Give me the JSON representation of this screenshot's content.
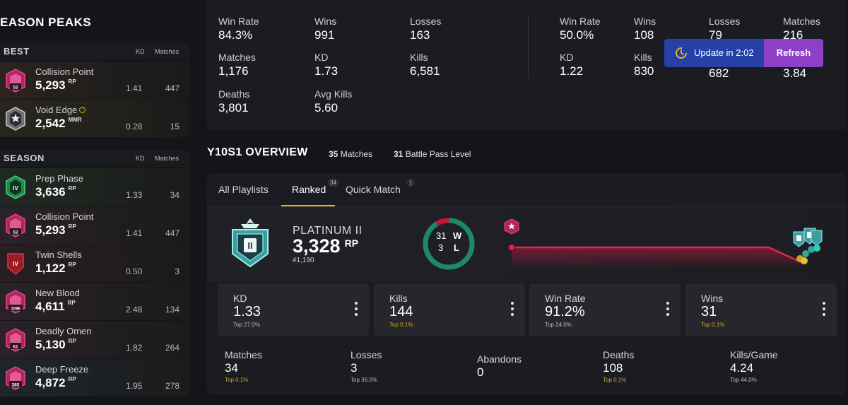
{
  "sidebar": {
    "title": "EASON PEAKS",
    "best": {
      "label": "BEST",
      "kd_header": "KD",
      "matches_header": "Matches",
      "items": [
        {
          "name": "Collision Point",
          "value": "5,293",
          "unit": "RP",
          "kd": "1.41",
          "matches": "447",
          "badge": "52"
        },
        {
          "name": "Void Edge",
          "value": "2,542",
          "unit": "MMR",
          "kd": "0.28",
          "matches": "15",
          "badge": ""
        }
      ]
    },
    "season": {
      "label": "SEASON",
      "kd_header": "KD",
      "matches_header": "Matches",
      "items": [
        {
          "name": "Prep Phase",
          "value": "3,636",
          "unit": "RP",
          "kd": "1.33",
          "matches": "34",
          "badge": "IV"
        },
        {
          "name": "Collision Point",
          "value": "5,293",
          "unit": "RP",
          "kd": "1.41",
          "matches": "447",
          "badge": "52"
        },
        {
          "name": "Twin Shells",
          "value": "1,122",
          "unit": "RP",
          "kd": "0.50",
          "matches": "3",
          "badge": "IV"
        },
        {
          "name": "New Blood",
          "value": "4,611",
          "unit": "RP",
          "kd": "2.48",
          "matches": "134",
          "badge": "1096"
        },
        {
          "name": "Deadly Omen",
          "value": "5,130",
          "unit": "RP",
          "kd": "1.82",
          "matches": "264",
          "badge": "61"
        },
        {
          "name": "Deep Freeze",
          "value": "4,872",
          "unit": "RP",
          "kd": "1.95",
          "matches": "278",
          "badge": "285"
        }
      ]
    }
  },
  "top_stats": {
    "left": {
      "win_rate": {
        "label": "Win Rate",
        "value": "84.3%"
      },
      "wins": {
        "label": "Wins",
        "value": "991"
      },
      "losses": {
        "label": "Losses",
        "value": "163"
      },
      "matches": {
        "label": "Matches",
        "value": "1,176"
      },
      "kd": {
        "label": "KD",
        "value": "1.73"
      },
      "kills": {
        "label": "Kills",
        "value": "6,581"
      },
      "deaths": {
        "label": "Deaths",
        "value": "3,801"
      },
      "avg_kills": {
        "label": "Avg Kills",
        "value": "5.60"
      }
    },
    "right": {
      "win_rate": {
        "label": "Win Rate",
        "value": "50.0%"
      },
      "wins": {
        "label": "Wins",
        "value": "108"
      },
      "losses": {
        "label": "Losses",
        "value": "79"
      },
      "matches": {
        "label": "Matches",
        "value": "216"
      },
      "kd": {
        "label": "KD",
        "value": "1.22"
      },
      "kills": {
        "label": "Kills",
        "value": "830"
      },
      "third": {
        "value": "682"
      },
      "fourth": {
        "value": "3.84"
      }
    }
  },
  "toast": {
    "text": "Update in 2:02",
    "button": "Refresh"
  },
  "overview": {
    "title": "Y10S1 OVERVIEW",
    "matches_count": "35",
    "matches_label": "Matches",
    "bp_level": "31",
    "bp_label": "Battle Pass Level",
    "tabs": [
      {
        "label": "All Playlists",
        "count": ""
      },
      {
        "label": "Ranked",
        "count": "34"
      },
      {
        "label": "Quick Match",
        "count": "1"
      }
    ],
    "rank": {
      "name": "PLATINUM II",
      "rp": "3,328",
      "rp_unit": "RP",
      "position": "#1,190",
      "badge": "II"
    },
    "record": {
      "wins": "31",
      "wins_label": "W",
      "losses": "3",
      "losses_label": "L",
      "win_fraction": 0.912
    },
    "boxes": [
      {
        "label": "KD",
        "value": "1.33",
        "top": "Top 27.0%",
        "gold": false
      },
      {
        "label": "Kills",
        "value": "144",
        "top": "Top 0.1%",
        "gold": true
      },
      {
        "label": "Win Rate",
        "value": "91.2%",
        "top": "Top 24.0%",
        "gold": false
      },
      {
        "label": "Wins",
        "value": "31",
        "top": "Top 0.1%",
        "gold": true
      }
    ],
    "bottom": [
      {
        "label": "Matches",
        "value": "34",
        "top": "Top 0.1%",
        "gold": true
      },
      {
        "label": "Losses",
        "value": "3",
        "top": "Top 36.0%",
        "gold": false
      },
      {
        "label": "Abandons",
        "value": "0",
        "top": "",
        "gold": false
      },
      {
        "label": "Deaths",
        "value": "108",
        "top": "Top 0.1%",
        "gold": true
      },
      {
        "label": "Kills/Game",
        "value": "4.24",
        "top": "Top 44.0%",
        "gold": false
      }
    ]
  },
  "colors": {
    "accent": "#e7b520",
    "win_green": "#1c8a63",
    "loss_red": "#c2183d",
    "toast_blue": "#2540a6",
    "refresh_purple": "#8e3fc7"
  }
}
